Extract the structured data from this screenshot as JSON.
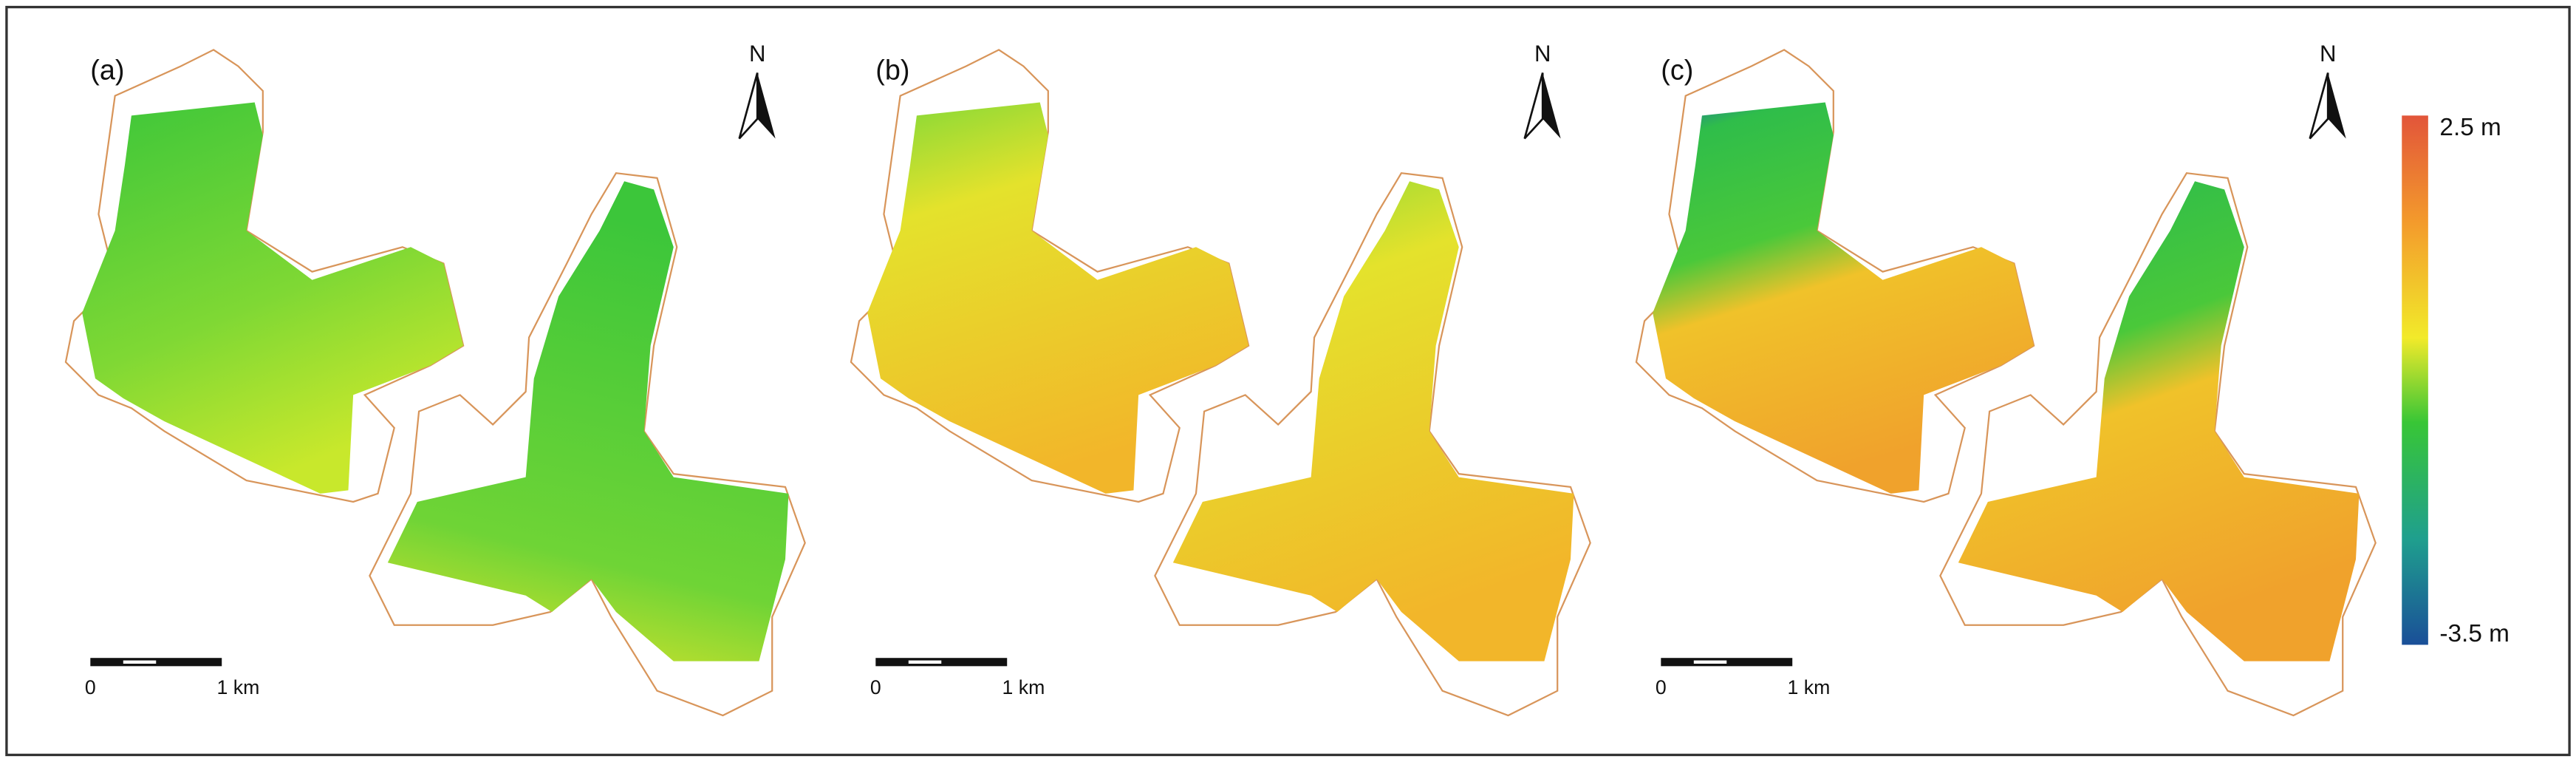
{
  "panels": [
    {
      "label": "(a)",
      "north": "N",
      "scale_start": "0",
      "scale_end": "1 km"
    },
    {
      "label": "(b)",
      "north": "N",
      "scale_start": "0",
      "scale_end": "1 km"
    },
    {
      "label": "(c)",
      "north": "N",
      "scale_start": "0",
      "scale_end": "1 km"
    }
  ],
  "colorbar": {
    "max_label": "2.5 m",
    "min_label": "-3.5 m"
  }
}
